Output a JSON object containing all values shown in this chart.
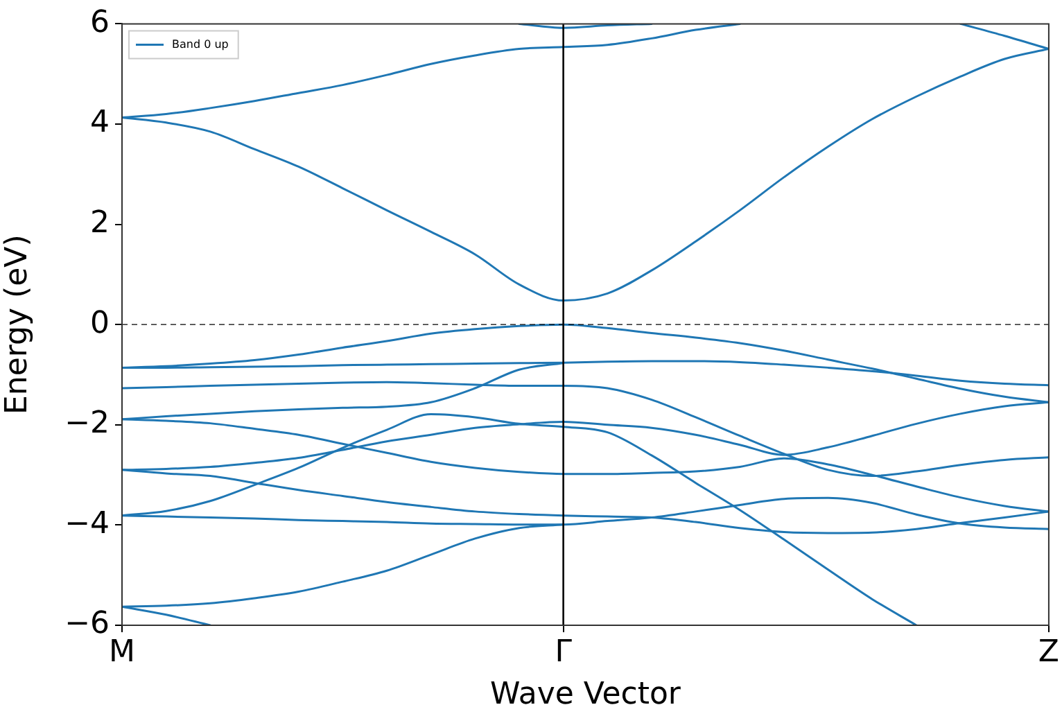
{
  "chart_data": {
    "type": "line",
    "xlabel": "Wave Vector",
    "ylabel": "Energy (eV)",
    "categories": [
      "M",
      null,
      null,
      null,
      null,
      null,
      null,
      null,
      null,
      null,
      "Γ",
      null,
      null,
      null,
      null,
      null,
      null,
      null,
      null,
      null,
      null,
      "Z"
    ],
    "ylim": [
      -6,
      6
    ],
    "yticks": [
      -6,
      -4,
      -2,
      0,
      2,
      4,
      6
    ],
    "grid": false,
    "legend": "top left",
    "marker": "none",
    "line_style": "solid",
    "ref_lines": [
      {
        "axis": "y",
        "value": 0,
        "color": "#000000",
        "line_style": "dashed"
      },
      {
        "axis": "x",
        "value": "Γ",
        "color": "#000000",
        "line_style": "solid"
      }
    ],
    "series": [
      {
        "name": "Band 0 up",
        "color": "#1f77b4",
        "values": [
          -5.63,
          -5.79,
          -6.0,
          null,
          null,
          null,
          null,
          null,
          null,
          null,
          null,
          null,
          null,
          null,
          null,
          null,
          null,
          null,
          null,
          null,
          null,
          null
        ]
      },
      {
        "color": "#1f77b4",
        "values": [
          -5.63,
          -5.61,
          -5.56,
          -5.46,
          -5.33,
          -5.13,
          -4.91,
          -4.59,
          -4.27,
          -4.06,
          -3.99,
          null,
          null,
          null,
          null,
          null,
          null,
          null,
          null,
          null,
          null,
          null
        ]
      },
      {
        "color": "#1f77b4",
        "values": [
          -3.81,
          -3.83,
          -3.85,
          -3.87,
          -3.9,
          -3.92,
          -3.94,
          -3.97,
          -3.98,
          -3.99,
          -3.99,
          -3.92,
          -3.85,
          -3.73,
          -3.6,
          -3.48,
          -3.46,
          -3.56,
          -3.79,
          -3.97,
          -4.05,
          -4.08
        ]
      },
      {
        "color": "#1f77b4",
        "values": [
          -2.9,
          -2.97,
          -3.02,
          -3.16,
          -3.3,
          -3.42,
          -3.54,
          -3.64,
          -3.73,
          -3.78,
          -3.81,
          -3.83,
          -3.85,
          -3.94,
          -4.06,
          -4.14,
          -4.16,
          -4.15,
          -4.08,
          -3.96,
          -3.85,
          -3.73
        ]
      },
      {
        "color": "#1f77b4",
        "values": [
          -3.81,
          -3.72,
          -3.52,
          -3.2,
          -2.86,
          -2.46,
          -2.1,
          -1.79,
          -1.85,
          -1.98,
          -2.04,
          -2.15,
          -2.61,
          -3.16,
          -3.7,
          -4.29,
          -4.89,
          -5.48,
          -6.0,
          null,
          null,
          null
        ]
      },
      {
        "color": "#1f77b4",
        "values": [
          -2.9,
          -2.88,
          -2.84,
          -2.76,
          -2.66,
          -2.5,
          -2.33,
          -2.2,
          -2.06,
          -1.99,
          -1.94,
          -2.0,
          -2.06,
          -2.2,
          -2.4,
          -2.6,
          -2.45,
          -2.22,
          -1.98,
          -1.78,
          -1.63,
          -1.55
        ]
      },
      {
        "color": "#1f77b4",
        "values": [
          -1.89,
          -1.92,
          -1.97,
          -2.08,
          -2.2,
          -2.38,
          -2.56,
          -2.74,
          -2.86,
          -2.94,
          -2.98,
          -2.98,
          -2.96,
          -2.93,
          -2.84,
          -2.67,
          -2.79,
          -3.0,
          -3.23,
          -3.45,
          -3.62,
          -3.73
        ]
      },
      {
        "color": "#1f77b4",
        "values": [
          -1.89,
          -1.83,
          -1.78,
          -1.73,
          -1.69,
          -1.66,
          -1.64,
          -1.55,
          -1.27,
          -0.9,
          -0.77,
          null,
          null,
          null,
          null,
          null,
          null,
          null,
          null,
          null,
          null,
          null
        ]
      },
      {
        "color": "#1f77b4",
        "values": [
          -1.27,
          -1.25,
          -1.22,
          -1.2,
          -1.18,
          -1.16,
          -1.15,
          -1.17,
          -1.2,
          -1.22,
          -1.22,
          -1.27,
          -1.5,
          -1.85,
          -2.22,
          -2.58,
          -2.9,
          -3.02,
          -2.93,
          -2.8,
          -2.7,
          -2.65
        ]
      },
      {
        "color": "#1f77b4",
        "values": [
          -0.86,
          -0.86,
          -0.85,
          -0.84,
          -0.83,
          -0.81,
          -0.8,
          -0.79,
          -0.78,
          -0.77,
          -0.76,
          -0.74,
          -0.73,
          -0.73,
          -0.75,
          -0.8,
          -0.86,
          -0.93,
          -1.02,
          -1.12,
          -1.18,
          -1.21
        ]
      },
      {
        "color": "#1f77b4",
        "values": [
          -0.86,
          -0.83,
          -0.78,
          -0.71,
          -0.6,
          -0.46,
          -0.33,
          -0.18,
          -0.09,
          -0.03,
          0,
          -0.07,
          -0.17,
          -0.26,
          -0.37,
          -0.52,
          -0.7,
          -0.88,
          -1.08,
          -1.28,
          -1.44,
          -1.55
        ]
      },
      {
        "color": "#1f77b4",
        "values": [
          4.13,
          4.03,
          3.85,
          3.5,
          3.15,
          2.72,
          2.28,
          1.85,
          1.4,
          0.8,
          0.48,
          0.62,
          1.08,
          1.66,
          2.28,
          2.94,
          3.55,
          4.1,
          4.55,
          4.95,
          5.3,
          5.5
        ]
      },
      {
        "color": "#1f77b4",
        "values": [
          4.13,
          4.2,
          4.32,
          4.46,
          4.62,
          4.78,
          4.98,
          5.2,
          5.37,
          5.5,
          5.54,
          5.58,
          5.71,
          5.88,
          6.0,
          null,
          null,
          null,
          null,
          null,
          null,
          null
        ]
      },
      {
        "color": "#1f77b4",
        "values": [
          null,
          null,
          null,
          null,
          null,
          null,
          null,
          null,
          null,
          6.0,
          5.92,
          5.97,
          6.0,
          null,
          null,
          null,
          null,
          null,
          null,
          null,
          null,
          null
        ]
      },
      {
        "color": "#1f77b4",
        "values": [
          null,
          null,
          null,
          null,
          null,
          null,
          null,
          null,
          null,
          null,
          null,
          null,
          null,
          null,
          null,
          null,
          null,
          null,
          null,
          6.0,
          5.76,
          5.5
        ]
      }
    ]
  }
}
